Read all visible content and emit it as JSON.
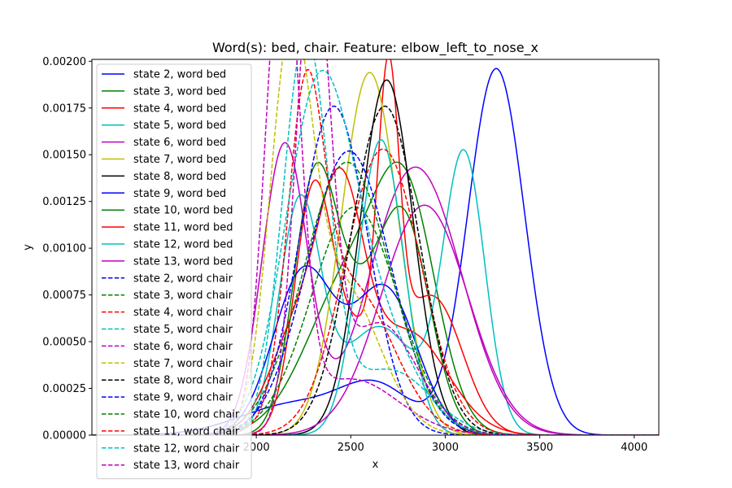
{
  "chart_data": {
    "type": "line",
    "title": "Word(s): bed, chair. Feature: elbow_left_to_nose_x",
    "xlabel": "x",
    "ylabel": "y",
    "xlim": [
      1130,
      4130
    ],
    "ylim": [
      0,
      0.00201
    ],
    "xticks": [
      2000,
      2500,
      3000,
      3500,
      4000
    ],
    "xtick_labels": [
      "2000",
      "2500",
      "3000",
      "3500",
      "4000"
    ],
    "yticks": [
      0,
      0.00025,
      0.0005,
      0.00075,
      0.001,
      0.00125,
      0.0015,
      0.00175,
      0.002
    ],
    "ytick_labels": [
      "0.00000",
      "0.00025",
      "0.00050",
      "0.00075",
      "0.00100",
      "0.00125",
      "0.00150",
      "0.00175",
      "0.00200"
    ],
    "grid": false,
    "legend_position": "upper-left",
    "series": [
      {
        "name": "state 2, word bed",
        "color": "#0000ff",
        "style": "solid",
        "components": [
          [
            0.000165,
            2200,
            280
          ],
          [
            0.00024,
            2640,
            190
          ],
          [
            0.00196,
            3270,
            150
          ]
        ]
      },
      {
        "name": "state 3, word bed",
        "color": "#008000",
        "style": "solid",
        "components": [
          [
            0.00083,
            2500,
            230
          ],
          [
            0.00105,
            2800,
            160
          ]
        ]
      },
      {
        "name": "state 4, word bed",
        "color": "#ff0000",
        "style": "solid",
        "components": [
          [
            0.00118,
            2300,
            100
          ],
          [
            0.00054,
            2570,
            180
          ],
          [
            0.00145,
            2700,
            55
          ],
          [
            0.00068,
            2950,
            150
          ]
        ]
      },
      {
        "name": "state 5, word bed",
        "color": "#00bfbf",
        "style": "solid",
        "components": [
          [
            0.00122,
            2230,
            110
          ],
          [
            0.00058,
            2650,
            200
          ],
          [
            0.00148,
            3100,
            110
          ]
        ]
      },
      {
        "name": "state 6, word bed",
        "color": "#bf00bf",
        "style": "solid",
        "components": [
          [
            0.00155,
            2150,
            120
          ],
          [
            0.00052,
            2700,
            200
          ],
          [
            0.00108,
            2910,
            220
          ]
        ]
      },
      {
        "name": "state 7, word bed",
        "color": "#bfbf00",
        "style": "solid",
        "components": [
          [
            0.00194,
            2600,
            150
          ]
        ]
      },
      {
        "name": "state 8, word bed",
        "color": "#000000",
        "style": "solid",
        "components": [
          [
            0.0019,
            2690,
            140
          ]
        ]
      },
      {
        "name": "state 9, word bed",
        "color": "#0000ff",
        "style": "solid",
        "components": [
          [
            0.00087,
            2250,
            160
          ],
          [
            0.00078,
            2680,
            170
          ]
        ]
      },
      {
        "name": "state 10, word bed",
        "color": "#008000",
        "style": "solid",
        "components": [
          [
            0.00113,
            2300,
            110
          ],
          [
            0.0006,
            2480,
            150
          ],
          [
            0.00113,
            2780,
            140
          ]
        ]
      },
      {
        "name": "state 11, word bed",
        "color": "#ff0000",
        "style": "solid",
        "components": [
          [
            0.00055,
            2220,
            150
          ],
          [
            0.00112,
            2450,
            120
          ],
          [
            0.00055,
            2800,
            210
          ]
        ]
      },
      {
        "name": "state 12, word bed",
        "color": "#00bfbf",
        "style": "solid",
        "components": [
          [
            0.00158,
            2660,
            120
          ]
        ]
      },
      {
        "name": "state 13, word bed",
        "color": "#bf00bf",
        "style": "solid",
        "components": [
          [
            0.00123,
            2890,
            230
          ]
        ]
      },
      {
        "name": "state 2, word chair",
        "color": "#0000ff",
        "style": "dashed",
        "components": [
          [
            0.00176,
            2410,
            180
          ]
        ]
      },
      {
        "name": "state 3, word chair",
        "color": "#008000",
        "style": "dashed",
        "components": [
          [
            0.00122,
            2520,
            230
          ]
        ]
      },
      {
        "name": "state 4, word chair",
        "color": "#ff0000",
        "style": "dashed",
        "components": [
          [
            0.00153,
            2670,
            200
          ]
        ]
      },
      {
        "name": "state 5, word chair",
        "color": "#00bfbf",
        "style": "dashed",
        "components": [
          [
            0.0021,
            2260,
            120
          ],
          [
            0.00035,
            2700,
            220
          ]
        ]
      },
      {
        "name": "state 6, word chair",
        "color": "#bf00bf",
        "style": "dashed",
        "components": [
          [
            0.0026,
            2140,
            90
          ],
          [
            0.0003,
            2500,
            250
          ]
        ]
      },
      {
        "name": "state 7, word chair",
        "color": "#bfbf00",
        "style": "dashed",
        "components": [
          [
            0.0019,
            2180,
            110
          ],
          [
            0.0008,
            2450,
            200
          ]
        ]
      },
      {
        "name": "state 8, word chair",
        "color": "#000000",
        "style": "dashed",
        "components": [
          [
            0.00176,
            2680,
            180
          ]
        ]
      },
      {
        "name": "state 9, word chair",
        "color": "#0000ff",
        "style": "dashed",
        "components": [
          [
            0.00152,
            2490,
            220
          ]
        ]
      },
      {
        "name": "state 10, word chair",
        "color": "#008000",
        "style": "dashed",
        "components": [
          [
            0.00146,
            2480,
            230
          ]
        ]
      },
      {
        "name": "state 11, word chair",
        "color": "#ff0000",
        "style": "dashed",
        "components": [
          [
            0.0015,
            2260,
            95
          ],
          [
            0.0008,
            2500,
            220
          ]
        ]
      },
      {
        "name": "state 12, word chair",
        "color": "#00bfbf",
        "style": "dashed",
        "components": [
          [
            0.0018,
            2330,
            180
          ],
          [
            0.0005,
            2650,
            200
          ]
        ]
      },
      {
        "name": "state 13, word chair",
        "color": "#bf00bf",
        "style": "dashed",
        "components": [
          [
            0.0025,
            2300,
            90
          ],
          [
            0.0006,
            2650,
            200
          ]
        ]
      }
    ]
  }
}
